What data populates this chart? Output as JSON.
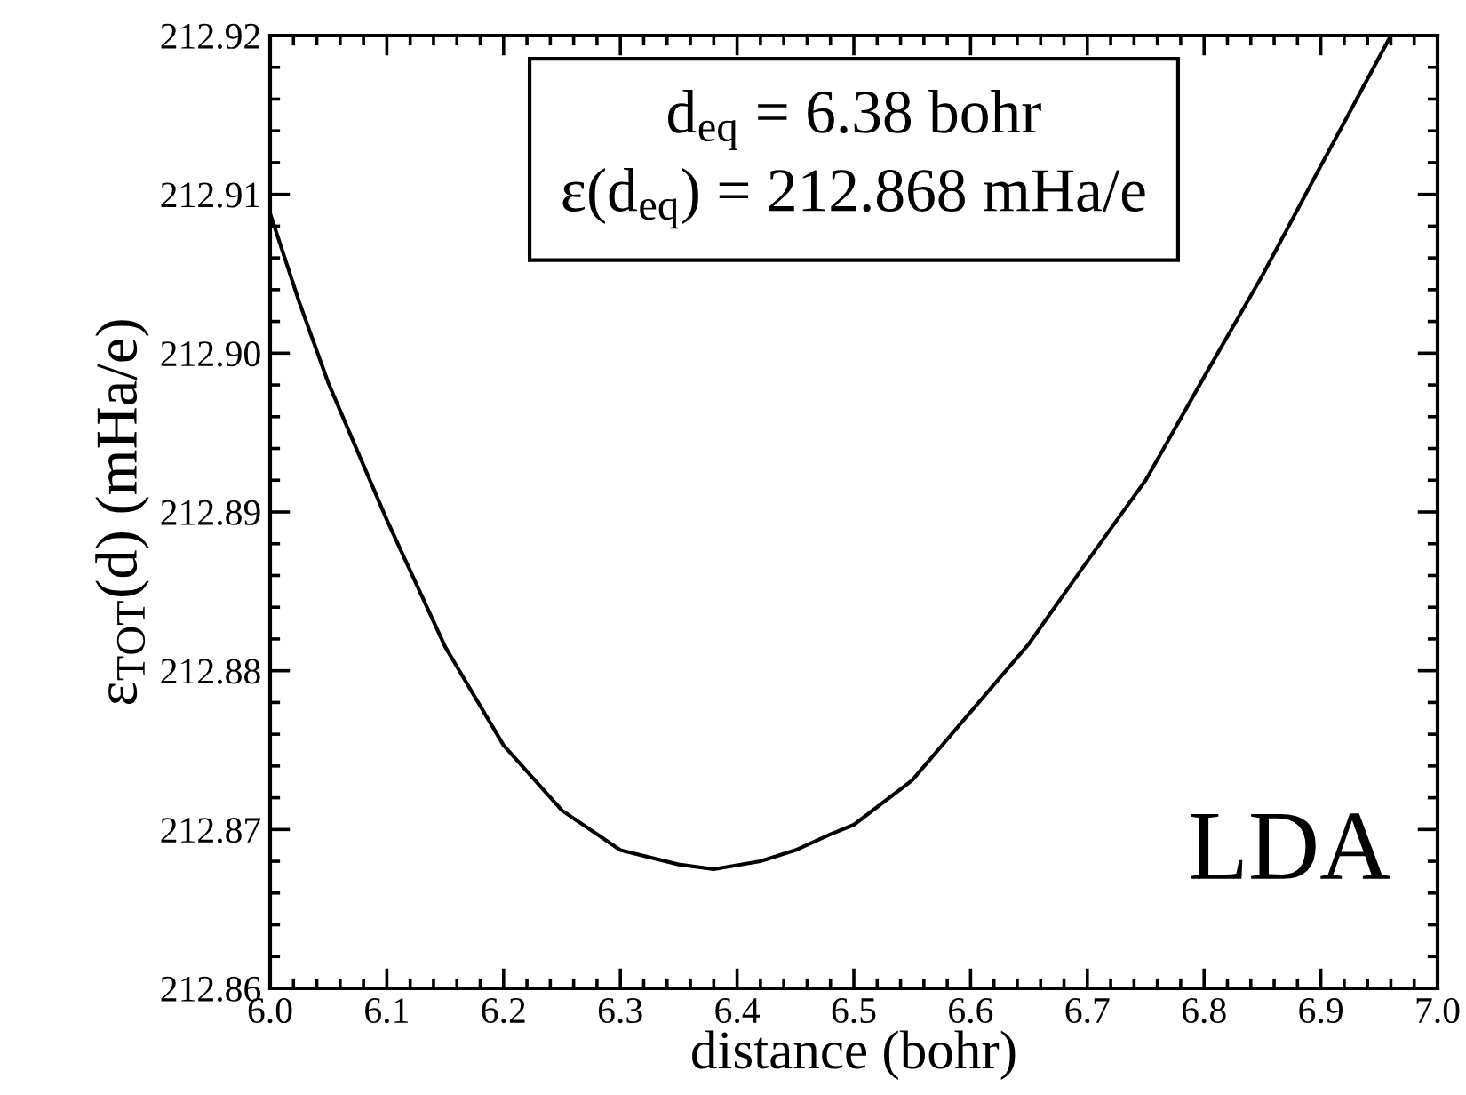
{
  "chart_data": {
    "type": "line",
    "xlabel": "distance (bohr)",
    "ylabel": "ε$_{TOT}$(d) (mHa/e)",
    "x": [
      6.0,
      6.025,
      6.05,
      6.075,
      6.1,
      6.15,
      6.2,
      6.25,
      6.3,
      6.35,
      6.38,
      6.42,
      6.45,
      6.48,
      6.5,
      6.55,
      6.6,
      6.65,
      6.7,
      6.75,
      6.8,
      6.85,
      6.9,
      6.96
    ],
    "series": [
      {
        "color": "#000000",
        "values": [
          212.9088,
          212.9032,
          212.8981,
          212.8938,
          212.8895,
          212.8815,
          212.8753,
          212.8712,
          212.8687,
          212.8678,
          212.8675,
          212.868,
          212.8687,
          212.8697,
          212.8703,
          212.8731,
          212.8774,
          212.8817,
          212.8869,
          212.892,
          212.8985,
          212.9049,
          212.9118,
          212.92
        ]
      }
    ],
    "xlim": [
      6.0,
      7.0
    ],
    "ylim": [
      212.86,
      212.92
    ],
    "xticks": [
      {
        "value": 6.0,
        "label": "6.0"
      },
      6.1,
      6.2,
      6.3,
      6.4,
      6.5,
      6.6,
      6.7,
      6.8,
      6.9,
      {
        "value": 7.0,
        "label": "7.0"
      }
    ],
    "yticks": [
      {
        "value": 212.86,
        "label": "212.86"
      },
      212.87,
      212.88,
      212.89,
      {
        "value": 212.9,
        "label": "212.90"
      },
      212.91,
      212.92
    ],
    "annotations": [
      "d$_{eq}$ = 6.38 bohr\nε(d$_{eq}$) = 212.868 mHa/e",
      "LDA"
    ],
    "grid": false,
    "legend": false,
    "marker": "none",
    "line_style": "solid"
  }
}
